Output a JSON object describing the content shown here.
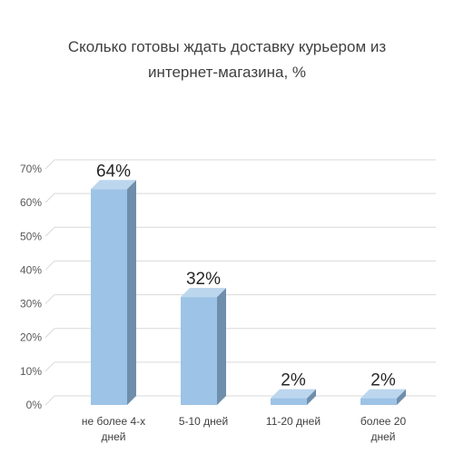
{
  "chart_data": {
    "type": "bar",
    "title": "Сколько готовы ждать доставку курьером из интернет-магазина, %",
    "categories": [
      [
        "не более 4-х",
        "дней"
      ],
      [
        "5-10 дней"
      ],
      [
        "11-20 дней"
      ],
      [
        "более 20",
        "дней"
      ]
    ],
    "values": [
      64,
      32,
      2,
      2
    ],
    "data_labels": [
      "64%",
      "32%",
      "2%",
      "2%"
    ],
    "y_ticks": [
      "0%",
      "10%",
      "20%",
      "30%",
      "40%",
      "50%",
      "60%",
      "70%"
    ],
    "ylim": [
      0,
      70
    ],
    "xlabel": "",
    "ylabel": "",
    "grid": true,
    "legend": "none",
    "colors": {
      "bar_front": "#9dc3e6",
      "bar_side": "#6f8eab",
      "bar_top": "#bcd6ee",
      "grid": "#d9d9d9"
    }
  }
}
